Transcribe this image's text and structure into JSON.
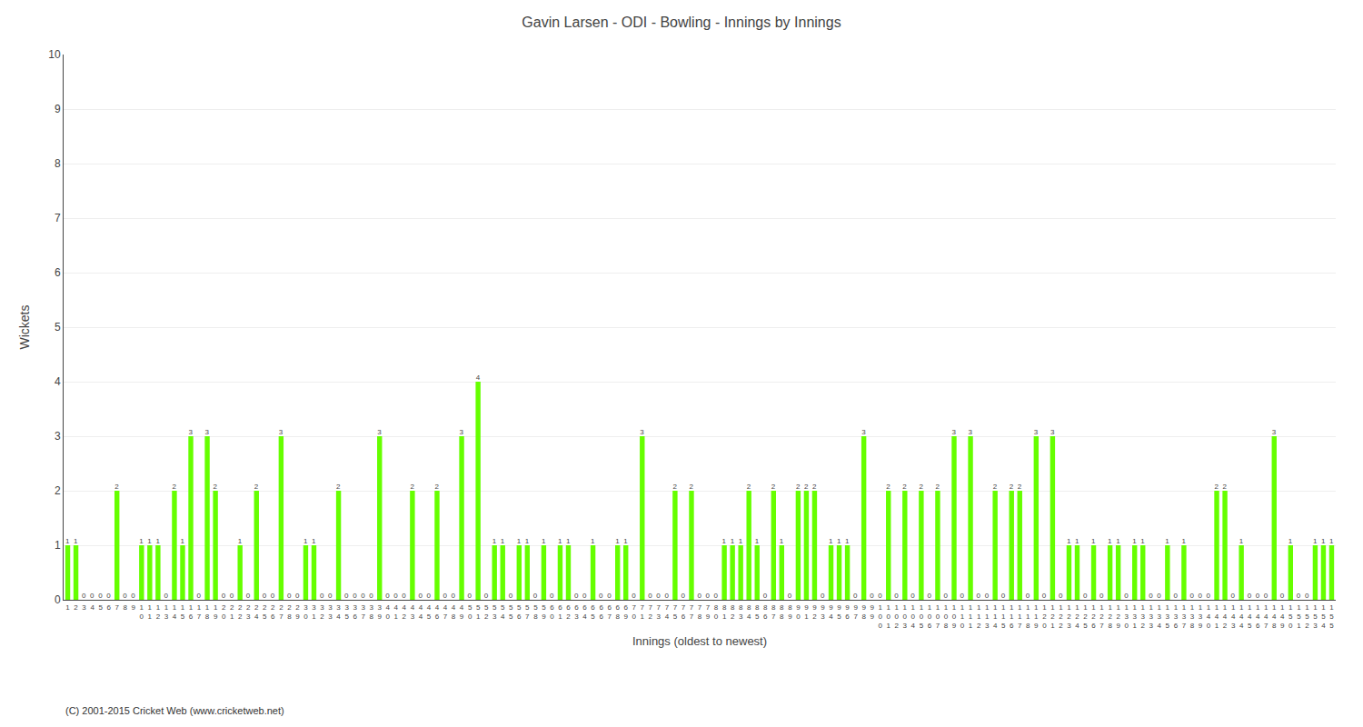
{
  "chart_data": {
    "type": "bar",
    "title": "Gavin Larsen - ODI - Bowling - Innings by Innings",
    "xlabel": "Innings (oldest to newest)",
    "ylabel": "Wickets",
    "categories": [
      "1",
      "2",
      "3",
      "4",
      "5",
      "6",
      "7",
      "8",
      "9",
      "10",
      "11",
      "12",
      "13",
      "14",
      "15",
      "16",
      "17",
      "18",
      "19",
      "20",
      "21",
      "22",
      "23",
      "24",
      "25",
      "26",
      "27",
      "28",
      "29",
      "30",
      "31",
      "32",
      "33",
      "34",
      "35",
      "36",
      "37",
      "38",
      "39",
      "40",
      "41",
      "42",
      "43",
      "44",
      "45",
      "46",
      "47",
      "48",
      "49",
      "50",
      "51",
      "52",
      "53",
      "54",
      "55",
      "56",
      "57",
      "58",
      "59",
      "60",
      "61",
      "62",
      "63",
      "64",
      "65",
      "66",
      "67",
      "68",
      "69",
      "70",
      "71",
      "72",
      "73",
      "74",
      "75",
      "76",
      "77",
      "78",
      "79",
      "80",
      "81",
      "82",
      "83",
      "84",
      "85",
      "86",
      "87",
      "88",
      "89",
      "90",
      "91",
      "92",
      "93",
      "94",
      "95",
      "96",
      "97",
      "98",
      "99",
      "100",
      "101",
      "102",
      "103",
      "104",
      "105",
      "106",
      "107",
      "108",
      "109",
      "110",
      "111",
      "112",
      "113",
      "114",
      "115",
      "116",
      "117",
      "118",
      "119",
      "120",
      "121",
      "122",
      "123",
      "124",
      "125",
      "126",
      "127",
      "128",
      "129",
      "130",
      "131",
      "132",
      "133",
      "134",
      "135",
      "136",
      "137",
      "138",
      "139",
      "140",
      "141",
      "142",
      "143",
      "144",
      "145",
      "146",
      "147",
      "148",
      "149",
      "150",
      "151",
      "152",
      "153",
      "154",
      "155"
    ],
    "values": [
      1,
      1,
      0,
      0,
      0,
      0,
      2,
      0,
      0,
      1,
      1,
      1,
      0,
      2,
      1,
      3,
      0,
      3,
      2,
      0,
      0,
      1,
      0,
      2,
      0,
      0,
      3,
      0,
      0,
      1,
      1,
      0,
      0,
      2,
      0,
      0,
      0,
      0,
      3,
      0,
      0,
      0,
      2,
      0,
      0,
      2,
      0,
      0,
      3,
      0,
      4,
      0,
      1,
      1,
      0,
      1,
      1,
      0,
      1,
      0,
      1,
      1,
      0,
      0,
      1,
      0,
      0,
      1,
      1,
      0,
      3,
      0,
      0,
      0,
      2,
      0,
      2,
      0,
      0,
      0,
      1,
      1,
      1,
      2,
      1,
      0,
      2,
      1,
      0,
      2,
      2,
      2,
      0,
      1,
      1,
      1,
      0,
      3,
      0,
      0,
      2,
      0,
      2,
      0,
      2,
      0,
      2,
      0,
      3,
      0,
      3,
      0,
      0,
      2,
      0,
      2,
      2,
      0,
      3,
      0,
      3,
      0,
      1,
      1,
      0,
      1,
      0,
      1,
      1,
      0,
      1,
      1,
      0,
      0,
      1,
      0,
      1,
      0,
      0,
      0,
      2,
      2,
      0,
      1,
      0,
      0,
      0,
      3,
      0,
      1,
      0,
      0,
      1,
      1,
      1
    ],
    "color": "#66ff00",
    "ylim": [
      0,
      10
    ],
    "yticks": [
      0,
      1,
      2,
      3,
      4,
      5,
      6,
      7,
      8,
      9,
      10
    ],
    "grid": true,
    "data_labels": true,
    "annotations": [
      "(C) 2001-2015 Cricket Web (www.cricketweb.net)"
    ]
  }
}
